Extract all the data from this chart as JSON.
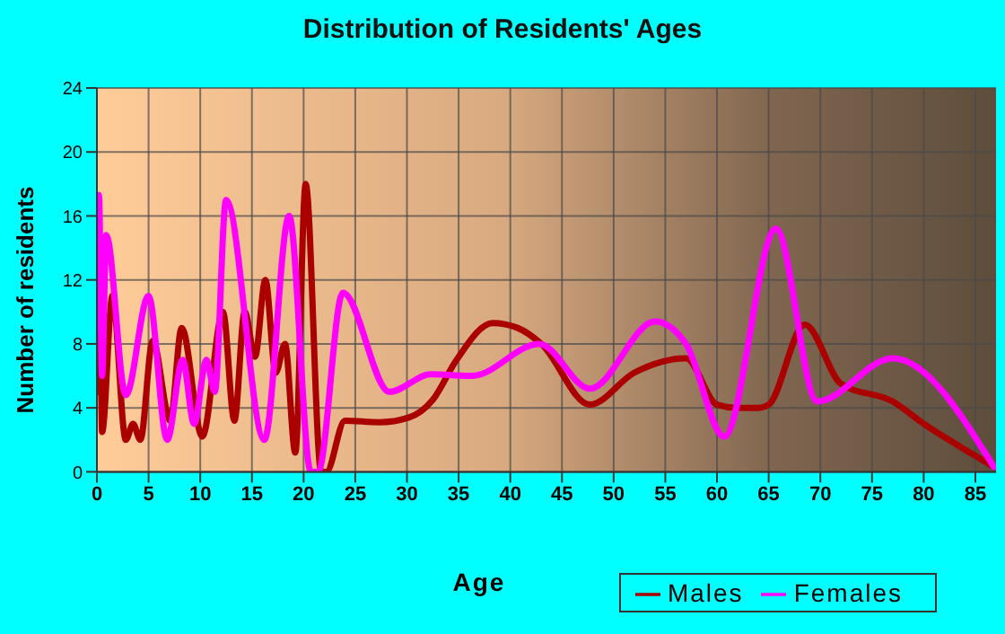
{
  "chart_data": {
    "type": "line",
    "title": "Distribution of Residents' Ages",
    "xlabel": "Age",
    "ylabel": "Number of residents",
    "xlim": [
      0,
      87
    ],
    "xticks": [
      0,
      5,
      10,
      15,
      20,
      25,
      30,
      35,
      40,
      45,
      50,
      55,
      60,
      65,
      70,
      75,
      80,
      85
    ],
    "ylim": [
      0,
      24
    ],
    "yticks": [
      0,
      4,
      8,
      12,
      16,
      20,
      24
    ],
    "grid": true,
    "legend": "bottom right",
    "marker": "none",
    "line_style": "solid",
    "series": [
      {
        "name": "Males",
        "color": "#aa0000",
        "x": [
          0,
          0.3,
          0.5,
          1.5,
          2.8,
          3.5,
          4.2,
          5.4,
          7.1,
          8.2,
          10.2,
          12.2,
          13.3,
          14.3,
          15.3,
          16.3,
          17.3,
          18.2,
          19.2,
          20.2,
          21.7,
          22.2,
          24,
          27.3,
          30.2,
          32.5,
          34.8,
          38.3,
          40.7,
          43,
          47.7,
          52,
          57,
          60,
          62,
          64,
          65,
          68.5,
          72,
          77,
          80,
          85,
          86.8
        ],
        "values": [
          5,
          10.8,
          2.5,
          11,
          2,
          3,
          2,
          8.2,
          3.2,
          9,
          2.2,
          10,
          3.2,
          10,
          7.2,
          12,
          6.2,
          8,
          1.2,
          18,
          0,
          0,
          3.2,
          3.1,
          3.4,
          4.5,
          7,
          9.3,
          9,
          8,
          4.2,
          6.2,
          7.1,
          4.2,
          4,
          4,
          4.2,
          9.2,
          5.5,
          4.4,
          3,
          1,
          0.3
        ]
      },
      {
        "name": "Females",
        "color": "#ff00ff",
        "x": [
          0,
          0.2,
          0.5,
          0.9,
          2.8,
          5,
          6.8,
          8.3,
          9.4,
          10.6,
          11.4,
          12.5,
          16.2,
          18.6,
          20.7,
          21.4,
          23.8,
          28.3,
          32.3,
          36.3,
          42.8,
          47.7,
          54,
          57,
          60.7,
          65.7,
          69.7,
          77,
          86.8
        ],
        "values": [
          10,
          17.3,
          6,
          14.8,
          4.8,
          11,
          2,
          7,
          3,
          7,
          5,
          17,
          2,
          16,
          0,
          0,
          11.2,
          5,
          6.1,
          6,
          8,
          5.2,
          9.4,
          8,
          2.2,
          15.2,
          4.4,
          7.1,
          0.3
        ]
      }
    ]
  }
}
